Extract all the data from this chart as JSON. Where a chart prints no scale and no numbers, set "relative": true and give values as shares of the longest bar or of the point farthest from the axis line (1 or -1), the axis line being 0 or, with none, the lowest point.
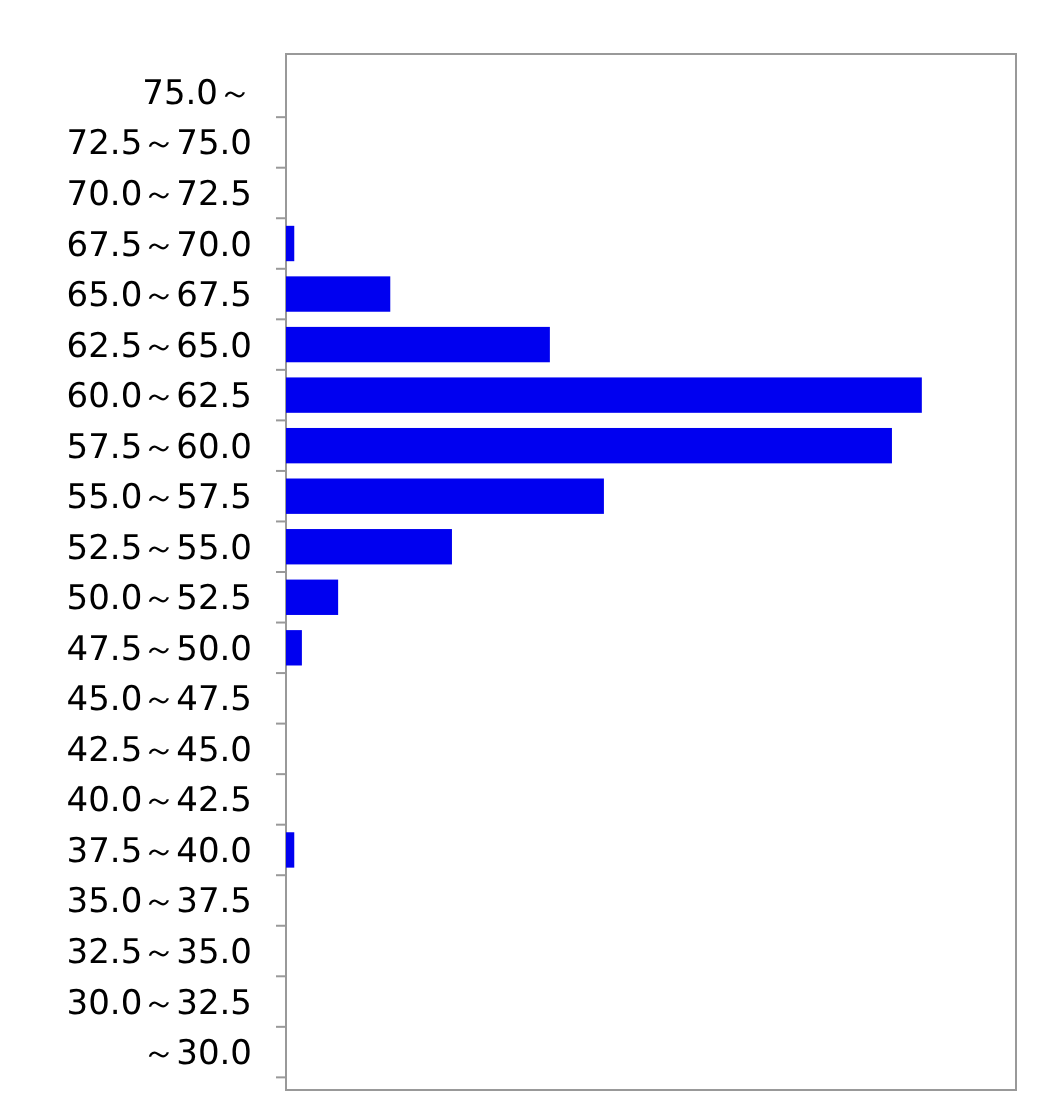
{
  "chart_data": {
    "type": "bar",
    "orientation": "horizontal",
    "relative": true,
    "color": "#0000f0",
    "categories": [
      "75.0～",
      "72.5～75.0",
      "70.0～72.5",
      "67.5～70.0",
      "65.0～67.5",
      "62.5～65.0",
      "60.0～62.5",
      "57.5～60.0",
      "55.0～57.5",
      "52.5～55.0",
      "50.0～52.5",
      "47.5～50.0",
      "45.0～47.5",
      "42.5～45.0",
      "40.0～42.5",
      "37.5～40.0",
      "35.0～37.5",
      "32.5～35.0",
      "30.0～32.5",
      "～30.0"
    ],
    "values": [
      0,
      0,
      0,
      0.013,
      0.164,
      0.415,
      1,
      0.953,
      0.5,
      0.261,
      0.082,
      0.025,
      0,
      0,
      0,
      0.013,
      0,
      0,
      0,
      0
    ]
  }
}
